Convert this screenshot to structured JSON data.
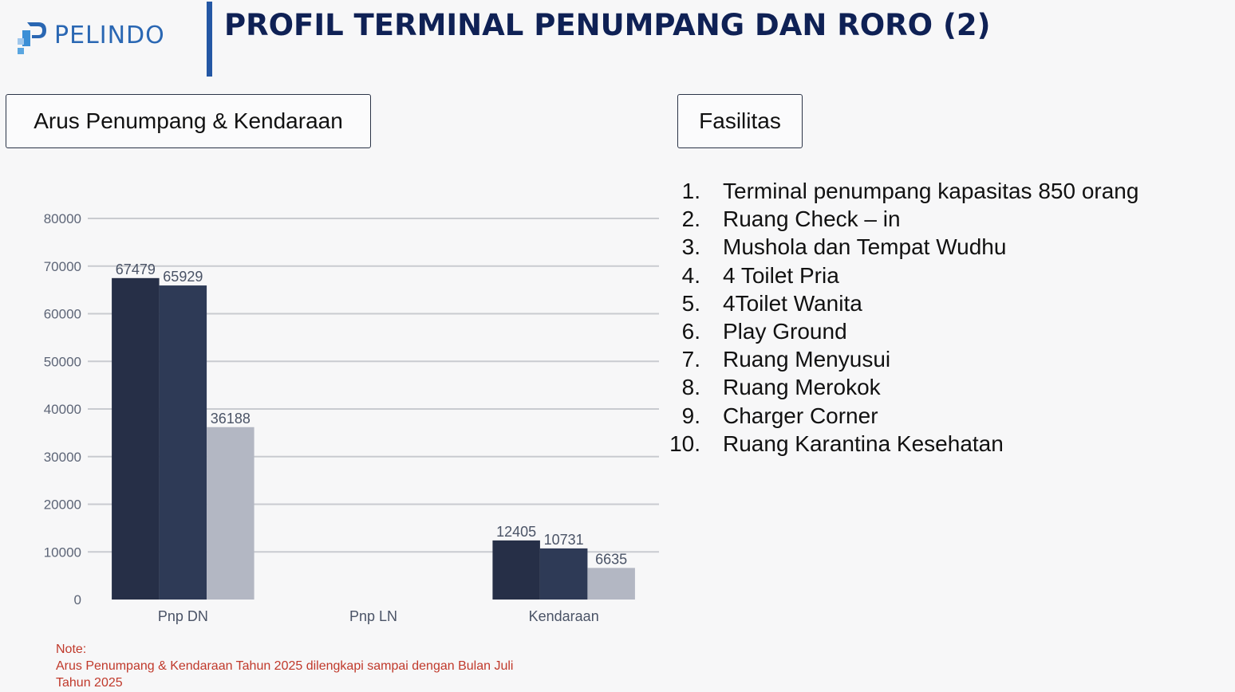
{
  "header": {
    "brand": "PELINDO",
    "title": "PROFIL TERMINAL PENUMPANG DAN RORO (2)"
  },
  "sections": {
    "left_label": "Arus Penumpang & Kendaraan",
    "right_label": "Fasilitas"
  },
  "colors": {
    "brand_blue": "#2a67b3",
    "title_navy": "#0f2155",
    "series_colors": [
      "#262f47",
      "#2e3a56",
      "#b3b7c3"
    ],
    "note_red": "#c0392b"
  },
  "chart_data": {
    "type": "bar",
    "categories": [
      "Pnp DN",
      "Pnp LN",
      "Kendaraan"
    ],
    "series": [
      {
        "values": [
          67479,
          null,
          12405
        ]
      },
      {
        "values": [
          65929,
          null,
          10731
        ]
      },
      {
        "values": [
          36188,
          null,
          6635
        ]
      }
    ],
    "ylim": [
      0,
      80000
    ],
    "yticks": [
      0,
      10000,
      20000,
      30000,
      40000,
      50000,
      60000,
      70000,
      80000
    ],
    "grid": true,
    "title": "",
    "xlabel": "",
    "ylabel": ""
  },
  "facilities": [
    {
      "num": "1.",
      "text": "Terminal penumpang kapasitas 850 orang"
    },
    {
      "num": "2.",
      "text": "Ruang Check – in"
    },
    {
      "num": "3.",
      "text": "Mushola dan Tempat Wudhu"
    },
    {
      "num": "4.",
      "text": "4 Toilet Pria"
    },
    {
      "num": "5.",
      "text": "4Toilet Wanita"
    },
    {
      "num": "6.",
      "text": "Play Ground"
    },
    {
      "num": "7.",
      "text": "Ruang Menyusui"
    },
    {
      "num": "8.",
      "text": "Ruang Merokok"
    },
    {
      "num": "9.",
      "text": "Charger Corner"
    },
    {
      "num": "10.",
      "text": "Ruang Karantina Kesehatan"
    }
  ],
  "note": {
    "label": "Note:",
    "line1": "Arus Penumpang & Kendaraan Tahun 2025 dilengkapi sampai dengan Bulan Juli",
    "line2": "Tahun 2025"
  }
}
